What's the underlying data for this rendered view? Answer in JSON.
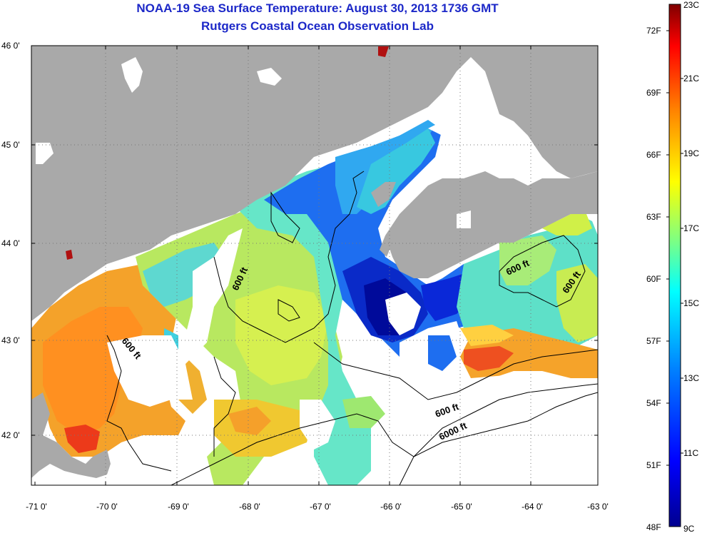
{
  "title_line1": "NOAA-19 Sea Surface Temperature:  August 30, 2013 1736 GMT",
  "title_line2": "Rutgers Coastal Ocean Observation Lab",
  "lat_labels": [
    "46 0'",
    "45 0'",
    "44 0'",
    "43 0'",
    "42 0'"
  ],
  "lon_labels": [
    "-71 0'",
    "-70 0'",
    "-69 0'",
    "-68 0'",
    "-67 0'",
    "-66 0'",
    "-65 0'",
    "-64 0'",
    "-63 0'"
  ],
  "contour_labels": [
    "600 ft",
    "600 ft",
    "600 ft",
    "600 ft",
    "600 ft",
    "6000 ft"
  ],
  "colorbar": {
    "fahrenheit": [
      "72F",
      "69F",
      "66F",
      "63F",
      "60F",
      "57F",
      "54F",
      "51F",
      "48F"
    ],
    "celsius": [
      "23C",
      "21C",
      "19C",
      "17C",
      "15C",
      "13C",
      "11C",
      "9C"
    ],
    "colors": [
      "#00008f",
      "#0000ff",
      "#0080ff",
      "#00ffff",
      "#80ff80",
      "#ffff00",
      "#ff8000",
      "#ff0000",
      "#800000"
    ]
  },
  "colors": {
    "land": "#a9a9a9",
    "title": "#1c28c8"
  }
}
